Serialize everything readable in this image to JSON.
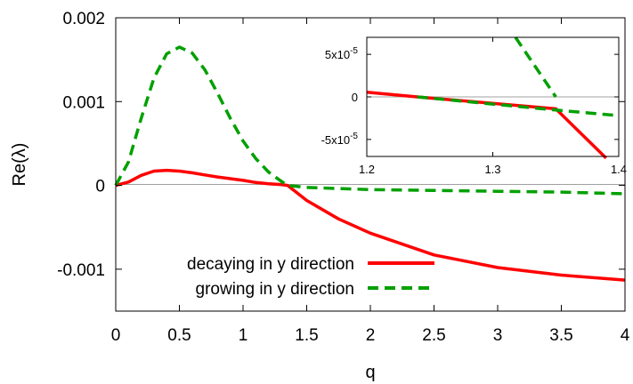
{
  "chart_data": [
    {
      "type": "line",
      "xlabel": "q",
      "ylabel": "Re(λ)",
      "xlim": [
        0,
        4
      ],
      "ylim": [
        -0.0015,
        0.002
      ],
      "x_ticks": [
        "0",
        "0.5",
        "1",
        "1.5",
        "2",
        "2.5",
        "3",
        "3.5",
        "4"
      ],
      "x_tick_values": [
        0,
        0.5,
        1,
        1.5,
        2,
        2.5,
        3,
        3.5,
        4
      ],
      "y_ticks": [
        "0.002",
        "0.001",
        "0",
        "-0.001"
      ],
      "y_tick_values": [
        0.002,
        0.001,
        0,
        -0.001
      ],
      "zero_line": true,
      "legend_position": "bottom-left",
      "series": [
        {
          "name": "decaying in y direction",
          "color": "#ff0000",
          "style": "solid",
          "x": [
            0,
            0.1,
            0.2,
            0.3,
            0.4,
            0.5,
            0.6,
            0.7,
            0.8,
            0.9,
            1.0,
            1.1,
            1.2,
            1.3,
            1.35,
            1.5,
            1.75,
            2.0,
            2.5,
            3.0,
            3.5,
            4.0
          ],
          "y": [
            0,
            4e-05,
            0.00012,
            0.00017,
            0.00018,
            0.00017,
            0.00015,
            0.000125,
            0.0001,
            8e-05,
            6e-05,
            3.5e-05,
            2e-05,
            1e-05,
            0,
            -0.00018,
            -0.0004,
            -0.00057,
            -0.00083,
            -0.00098,
            -0.00107,
            -0.00113
          ]
        },
        {
          "name": "growing in y direction",
          "color": "#00a000",
          "style": "dashed",
          "x": [
            0,
            0.1,
            0.2,
            0.3,
            0.4,
            0.5,
            0.6,
            0.7,
            0.8,
            0.9,
            1.0,
            1.1,
            1.2,
            1.3,
            1.35,
            1.5,
            2.0,
            2.5,
            3.0,
            3.5,
            4.0
          ],
          "y": [
            0,
            0.00028,
            0.0008,
            0.00128,
            0.00157,
            0.00165,
            0.00158,
            0.00138,
            0.0011,
            0.0008,
            0.00053,
            0.00032,
            0.00016,
            5e-05,
            0,
            -2.5e-05,
            -5e-05,
            -6e-05,
            -7e-05,
            -8e-05,
            -0.0001
          ]
        }
      ]
    },
    {
      "type": "line",
      "xlim": [
        1.2,
        1.4
      ],
      "ylim": [
        -7e-05,
        7e-05
      ],
      "x_ticks": [
        "1.2",
        "1.3",
        "1.4"
      ],
      "x_tick_values": [
        1.2,
        1.3,
        1.4
      ],
      "y_ticks": [
        {
          "base": "5x10",
          "exp": "-5"
        },
        {
          "base": "0",
          "exp": ""
        },
        {
          "base": "-5x10",
          "exp": "-5"
        }
      ],
      "y_tick_values": [
        5e-05,
        0,
        -5e-05
      ],
      "zero_line": true,
      "series": [
        {
          "name": "decaying in y direction",
          "color": "#ff0000",
          "style": "solid",
          "x": [
            1.2,
            1.24,
            1.35,
            1.39
          ],
          "y": [
            5.5e-06,
            0,
            -1.4e-05,
            -7.2e-05
          ]
        },
        {
          "name": "growing in y direction",
          "color": "#00a000",
          "style": "dashed",
          "x": [
            1.318,
            1.35,
            1.24,
            1.3,
            1.35,
            1.4
          ],
          "y": [
            7e-05,
            0,
            0,
            -8.5e-06,
            -1.55e-05,
            -2.2e-05
          ],
          "segments": [
            [
              0,
              1
            ],
            [
              2,
              5
            ]
          ]
        }
      ]
    }
  ]
}
